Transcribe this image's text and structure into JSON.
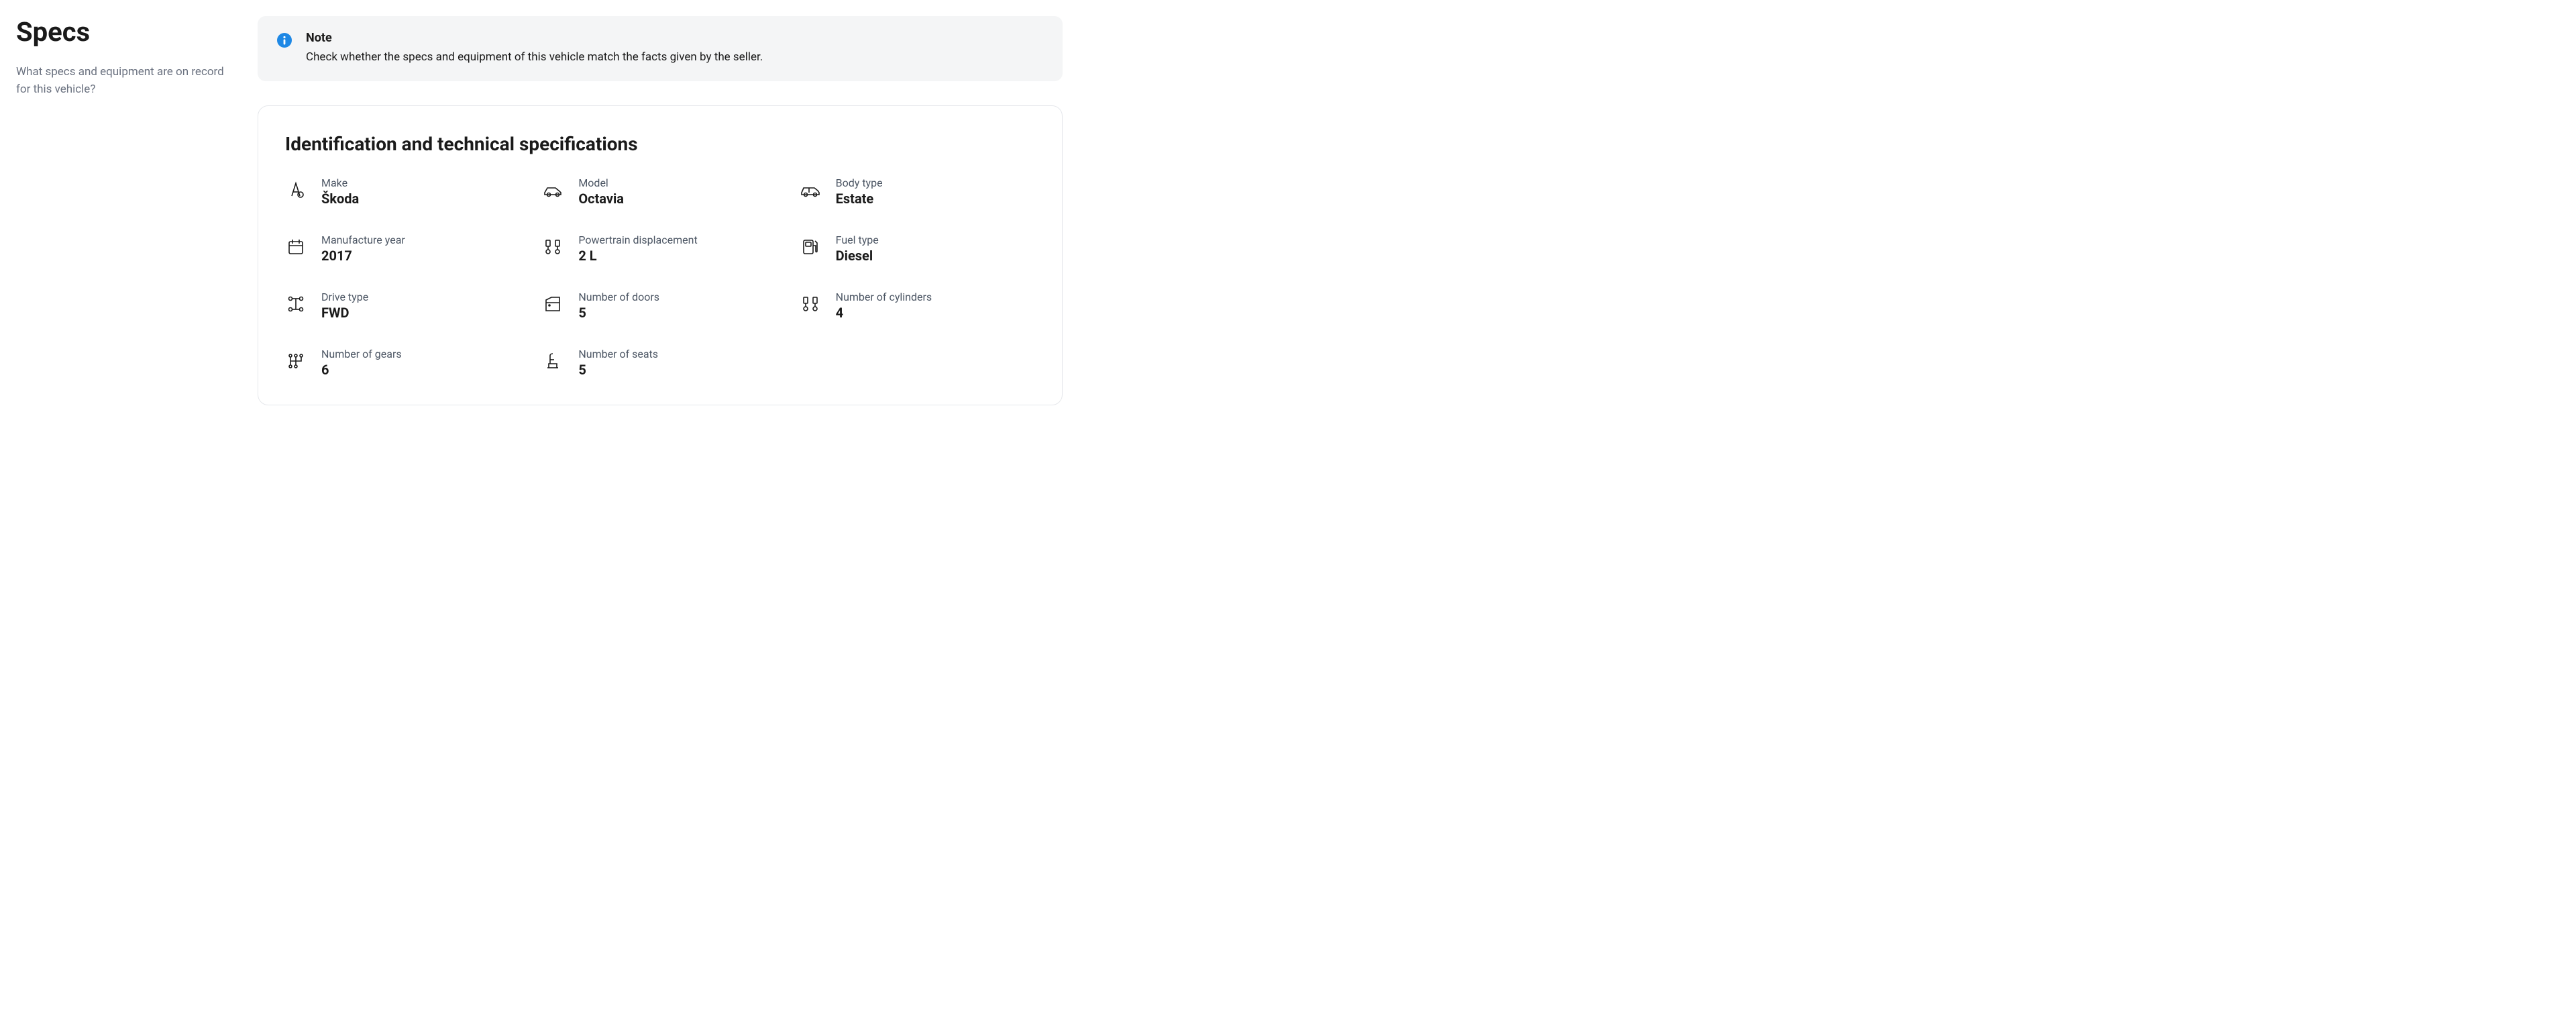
{
  "sidebar": {
    "title": "Specs",
    "subtitle": "What specs and equipment are on record for this vehicle?"
  },
  "note": {
    "title": "Note",
    "text": "Check whether the specs and equipment of this vehicle match the facts given by the seller."
  },
  "card": {
    "title": "Identification and technical specifications"
  },
  "specs": [
    {
      "icon": "make",
      "label": "Make",
      "value": "Škoda"
    },
    {
      "icon": "model",
      "label": "Model",
      "value": "Octavia"
    },
    {
      "icon": "body",
      "label": "Body type",
      "value": "Estate"
    },
    {
      "icon": "calendar",
      "label": "Manufacture year",
      "value": "2017"
    },
    {
      "icon": "displacement",
      "label": "Powertrain displacement",
      "value": "2 L"
    },
    {
      "icon": "fuel",
      "label": "Fuel type",
      "value": "Diesel"
    },
    {
      "icon": "drive",
      "label": "Drive type",
      "value": "FWD"
    },
    {
      "icon": "doors",
      "label": "Number of doors",
      "value": "5"
    },
    {
      "icon": "cylinders",
      "label": "Number of cylinders",
      "value": "4"
    },
    {
      "icon": "gears",
      "label": "Number of gears",
      "value": "6"
    },
    {
      "icon": "seats",
      "label": "Number of seats",
      "value": "5"
    }
  ],
  "colors": {
    "background": "#ffffff",
    "text": "#1a1a1a",
    "muted": "#6b7280",
    "note_bg": "#f4f5f6",
    "border": "#e5e7eb",
    "info_icon": "#1e88e5"
  }
}
